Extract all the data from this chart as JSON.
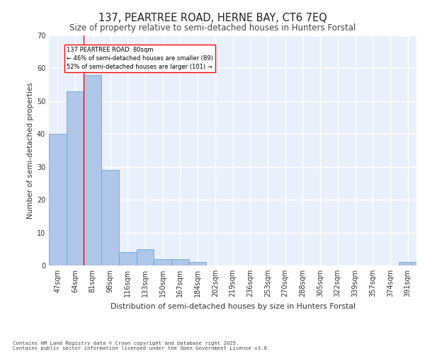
{
  "title": "137, PEARTREE ROAD, HERNE BAY, CT6 7EQ",
  "subtitle": "Size of property relative to semi-detached houses in Hunters Forstal",
  "xlabel": "Distribution of semi-detached houses by size in Hunters Forstal",
  "ylabel": "Number of semi-detached properties",
  "categories": [
    "47sqm",
    "64sqm",
    "81sqm",
    "98sqm",
    "116sqm",
    "133sqm",
    "150sqm",
    "167sqm",
    "184sqm",
    "202sqm",
    "219sqm",
    "236sqm",
    "253sqm",
    "270sqm",
    "288sqm",
    "305sqm",
    "322sqm",
    "339sqm",
    "357sqm",
    "374sqm",
    "391sqm"
  ],
  "values": [
    40,
    53,
    58,
    29,
    4,
    5,
    2,
    2,
    1,
    0,
    0,
    0,
    0,
    0,
    0,
    0,
    0,
    0,
    0,
    0,
    1
  ],
  "bar_color": "#aec6e8",
  "bar_edge_color": "#5a9fd4",
  "red_line_x": 1.5,
  "annotation_text": "137 PEARTREE ROAD: 80sqm\n← 46% of semi-detached houses are smaller (89)\n52% of semi-detached houses are larger (101) →",
  "ylim": [
    0,
    70
  ],
  "yticks": [
    0,
    10,
    20,
    30,
    40,
    50,
    60,
    70
  ],
  "background_color": "#eaf0fb",
  "grid_color": "#ffffff",
  "footer_line1": "Contains HM Land Registry data © Crown copyright and database right 2025.",
  "footer_line2": "Contains public sector information licensed under the Open Government Licence v3.0."
}
